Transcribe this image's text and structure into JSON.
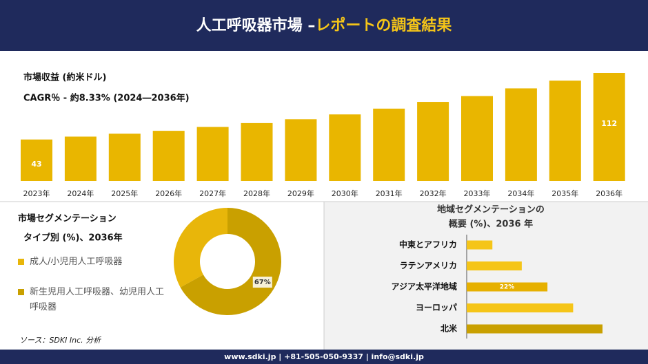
{
  "header": {
    "title_main": "人工呼吸器市場 –",
    "title_highlight": "レポートの調査結果"
  },
  "chart_data": [
    {
      "type": "bar",
      "title": "市場収益 (約米ドル)",
      "subtitle": "CAGR％ - 約8.33% (2024―2036年)",
      "categories": [
        "2023年",
        "2024年",
        "2025年",
        "2026年",
        "2027年",
        "2028年",
        "2029年",
        "2030年",
        "2031年",
        "2032年",
        "2033年",
        "2034年",
        "2035年",
        "2036年"
      ],
      "values": [
        43,
        46,
        49,
        52,
        56,
        60,
        64,
        69,
        75,
        82,
        88,
        96,
        104,
        112
      ],
      "value_labels": [
        "43",
        null,
        null,
        null,
        null,
        null,
        null,
        null,
        null,
        null,
        null,
        null,
        null,
        "112"
      ],
      "color": "#e9b600"
    },
    {
      "type": "donut",
      "title": "市場セグメンテーション",
      "subtitle": "タイプ別 (%)、2036年",
      "categories": [
        "成人/小児用人工呼吸器",
        "新生児用人工呼吸器、幼児用人工呼吸器"
      ],
      "values": [
        33,
        67
      ],
      "value_labels": [
        null,
        "67%"
      ],
      "colors": [
        "#e8b60a",
        "#c9a000"
      ]
    },
    {
      "type": "hbar",
      "title": "地域セグメンテーションの",
      "subtitle": "概要 (%)、2036 年",
      "categories": [
        "中東とアフリカ",
        "ラテンアメリカ",
        "アジア太平洋地域",
        "ヨーロッパ",
        "北米"
      ],
      "values": [
        7,
        15,
        22,
        29,
        37
      ],
      "value_labels": [
        null,
        null,
        "22%",
        null,
        null
      ],
      "colors": [
        "#f5c518",
        "#f5c518",
        "#e6b000",
        "#f5c518",
        "#c9a000"
      ]
    }
  ],
  "source": "ソース：SDKI Inc. 分析",
  "footer": "www.sdki.jp | +81-505-050-9337 | info@sdki.jp"
}
